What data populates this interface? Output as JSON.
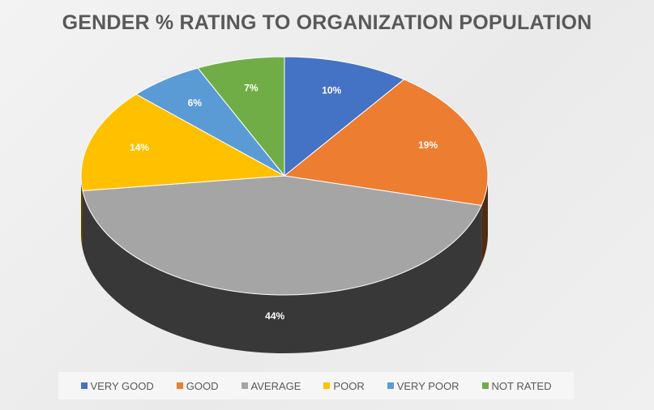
{
  "chart_data": {
    "type": "pie",
    "title": "GENDER % RATING TO ORGANIZATION POPULATION",
    "categories": [
      "VERY GOOD",
      "GOOD",
      "AVERAGE",
      "POOR",
      "VERY POOR",
      "NOT RATED"
    ],
    "values": [
      10,
      19,
      44,
      14,
      6,
      7
    ],
    "data_labels": [
      "10%",
      "19%",
      "44%",
      "14%",
      "6%",
      "7%"
    ],
    "colors": [
      "#4472C4",
      "#ED7D31",
      "#A5A5A5",
      "#FFC000",
      "#5B9BD5",
      "#70AD47"
    ],
    "legend_position": "bottom",
    "style": "3d"
  }
}
